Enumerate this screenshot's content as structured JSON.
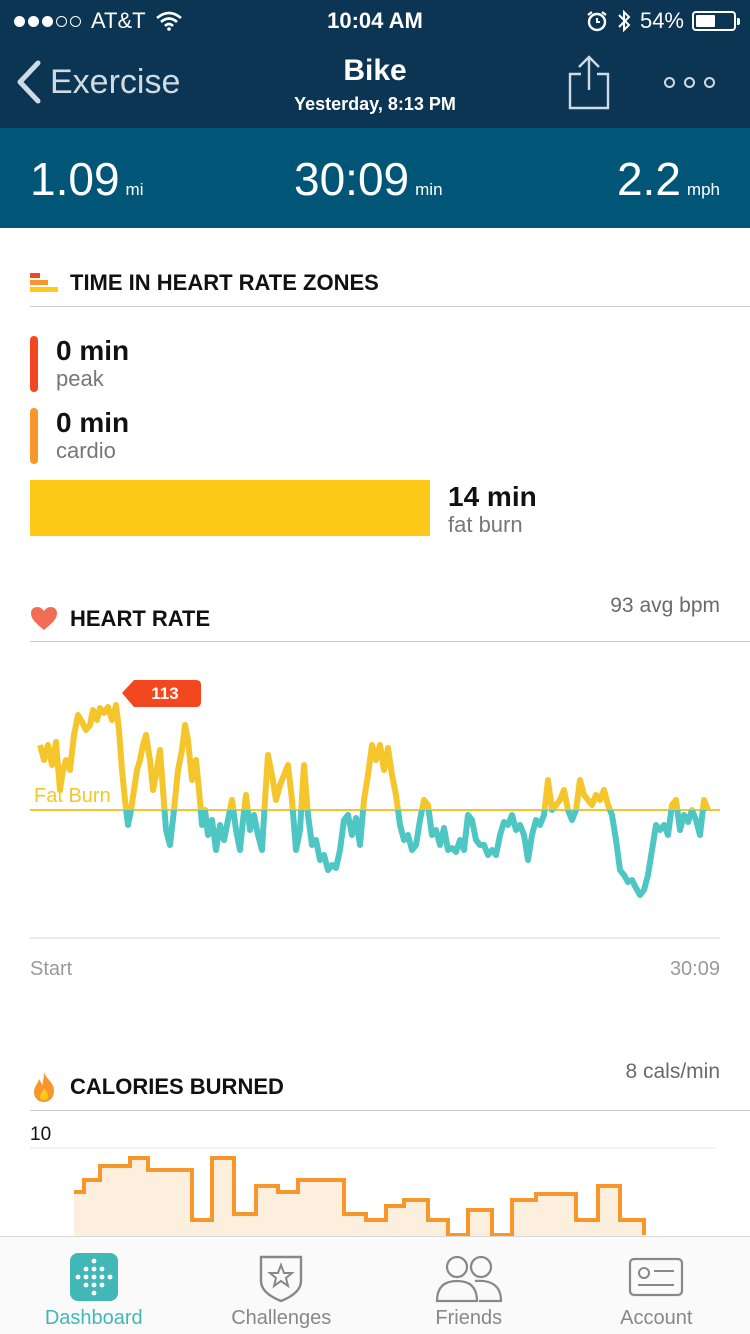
{
  "status_bar": {
    "carrier": "AT&T",
    "time": "10:04 AM",
    "battery": "54%",
    "battery_level": 0.54
  },
  "nav": {
    "back_label": "Exercise",
    "title": "Bike",
    "subtitle": "Yesterday, 8:13 PM"
  },
  "stats": {
    "distance": {
      "value": "1.09",
      "unit": "mi"
    },
    "duration": {
      "value": "30:09",
      "unit": "min"
    },
    "speed": {
      "value": "2.2",
      "unit": "mph"
    }
  },
  "zones": {
    "title": "TIME IN HEART RATE ZONES",
    "peak": {
      "minutes": "0 min",
      "label": "peak",
      "color": "#f2471f"
    },
    "cardio": {
      "minutes": "0 min",
      "label": "cardio",
      "color": "#f7962b"
    },
    "fat_burn": {
      "minutes": "14 min",
      "label": "fat burn",
      "color": "#ffc91a"
    }
  },
  "heart_rate": {
    "title": "HEART RATE",
    "avg": "93 avg bpm",
    "peak_badge": "113",
    "threshold_label": "Fat Burn",
    "axis_start": "Start",
    "axis_end": "30:09",
    "colors": {
      "above": "#f5c62c",
      "below": "#4ec6c4"
    }
  },
  "calories": {
    "title": "CALORIES BURNED",
    "rate": "8 cals/min",
    "y_max_label": "10",
    "colors": {
      "line": "#f7962b",
      "fill": "#fcefdd"
    }
  },
  "tabs": [
    {
      "label": "Dashboard",
      "icon": "dashboard-icon",
      "active": true
    },
    {
      "label": "Challenges",
      "icon": "challenges-icon",
      "active": false
    },
    {
      "label": "Friends",
      "icon": "friends-icon",
      "active": false
    },
    {
      "label": "Account",
      "icon": "account-icon",
      "active": false
    }
  ]
}
